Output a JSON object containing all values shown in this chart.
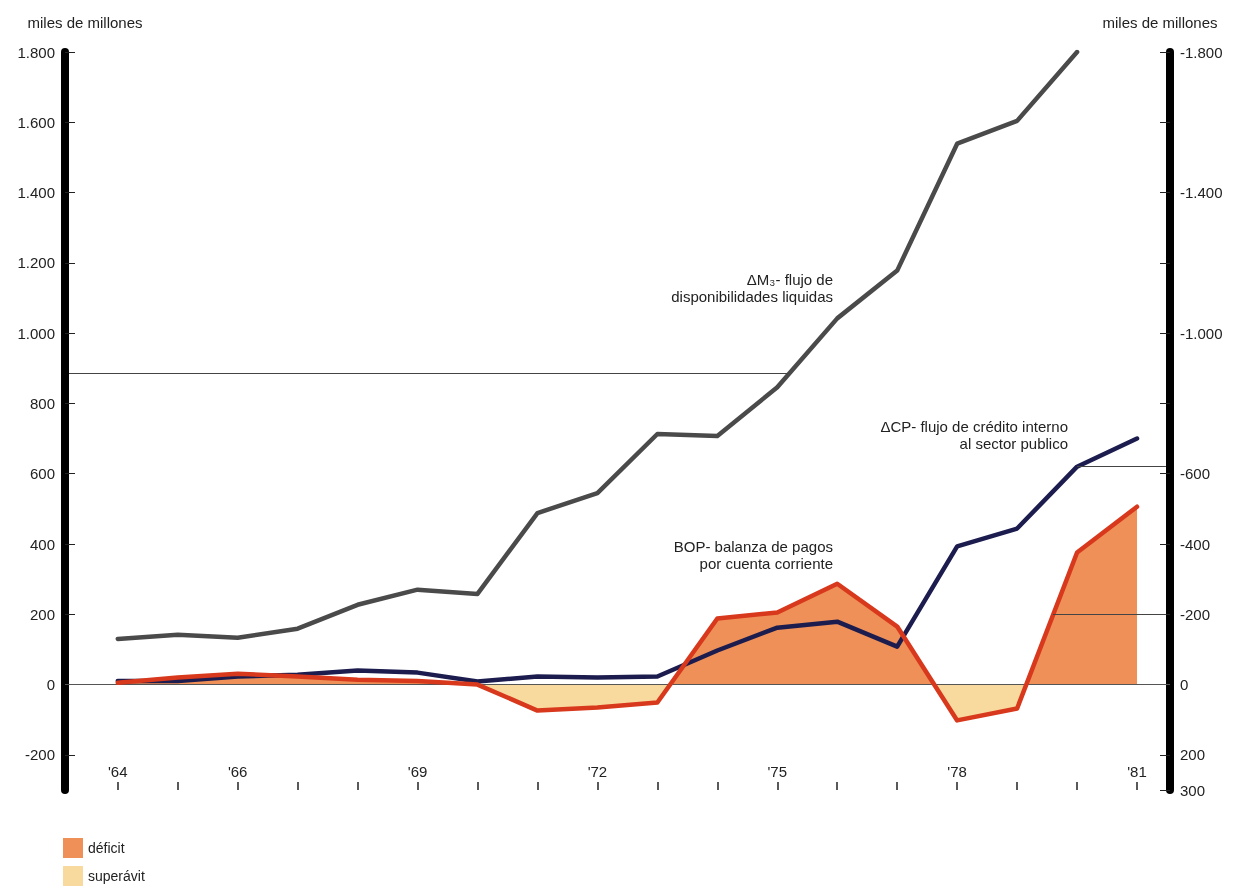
{
  "chart_data": {
    "type": "line",
    "ylabel": "miles de millones",
    "y2label": "miles de millones",
    "x": [
      1964,
      1965,
      1966,
      1967,
      1968,
      1969,
      1970,
      1971,
      1972,
      1973,
      1974,
      1975,
      1976,
      1977,
      1978,
      1979,
      1980,
      1981
    ],
    "xlim": [
      1963.12,
      1981.55
    ],
    "xticks": [
      {
        "value": 1964,
        "label": "'64"
      },
      {
        "value": 1965,
        "label": null
      },
      {
        "value": 1966,
        "label": "'66"
      },
      {
        "value": 1967,
        "label": null
      },
      {
        "value": 1968,
        "label": null
      },
      {
        "value": 1969,
        "label": "'69"
      },
      {
        "value": 1970,
        "label": null
      },
      {
        "value": 1971,
        "label": null
      },
      {
        "value": 1972,
        "label": "'72"
      },
      {
        "value": 1973,
        "label": null
      },
      {
        "value": 1974,
        "label": null
      },
      {
        "value": 1975,
        "label": "'75"
      },
      {
        "value": 1976,
        "label": null
      },
      {
        "value": 1977,
        "label": null
      },
      {
        "value": 1978,
        "label": "'78"
      },
      {
        "value": 1979,
        "label": null
      },
      {
        "value": 1980,
        "label": null
      },
      {
        "value": 1981,
        "label": "'81"
      }
    ],
    "ylim": [
      -300,
      1800
    ],
    "yticks": [
      -200,
      0,
      200,
      400,
      600,
      800,
      {
        "value": 1000,
        "label": "1.000"
      },
      {
        "value": 1200,
        "label": "1.200"
      },
      {
        "value": 1400,
        "label": "1.400"
      },
      {
        "value": 1600,
        "label": "1.600"
      },
      {
        "value": 1800,
        "label": "1.800"
      }
    ],
    "y2lim": [
      300,
      -1800
    ],
    "y2ticks": [
      300,
      200,
      0,
      -200,
      -400,
      -600,
      {
        "value": -800,
        "label": null
      },
      {
        "value": -1000,
        "label": "-1.000"
      },
      {
        "value": -1200,
        "label": null
      },
      {
        "value": -1400,
        "label": "-1.400"
      },
      {
        "value": -1600,
        "label": null
      },
      {
        "value": -1800,
        "label": "-1.800"
      }
    ],
    "grid": false,
    "legend": "bottom left",
    "marker": "none",
    "line_style": "solid",
    "ref_lines": [
      {
        "axis": "y",
        "value": 0,
        "color": "#555555"
      }
    ],
    "series": [
      {
        "name": "ΔM₃- flujo de\ndisponibilidades liquidas",
        "type": "line",
        "color": "#4a4a4a",
        "x": [
          1964,
          1965,
          1966,
          1967,
          1968,
          1969,
          1970,
          1971,
          1972,
          1973,
          1974,
          1975,
          1976,
          1977,
          1978,
          1979,
          1980
        ],
        "values": [
          130,
          142,
          133,
          159,
          227,
          270,
          258,
          488,
          545,
          713,
          707,
          846,
          1042,
          1178,
          1539,
          1604,
          1800
        ]
      },
      {
        "name": "ΔCP- flujo de crédito interno\nal sector publico",
        "type": "line",
        "axis": "y2",
        "color": "#1c1c4e",
        "values": [
          -10,
          -10,
          -23,
          -28,
          -40,
          -34,
          -9,
          -23,
          -20,
          -23,
          -97,
          -162,
          -179,
          -108,
          -393,
          -444,
          -620,
          -700
        ]
      },
      {
        "name": "BOP- balanza de pagos\npor cuenta corriente",
        "type": "line",
        "axis": "y2",
        "color": "#d8381c",
        "values": [
          -5,
          -20,
          -31,
          -23,
          -14,
          -10,
          0,
          74,
          65,
          51,
          -188,
          -205,
          -287,
          -165,
          102,
          68,
          -376,
          -506
        ]
      },
      {
        "name": "déficit",
        "type": "area",
        "axis": "y2",
        "color": "#ee9058",
        "x": [
          1964,
          1965,
          1966,
          1967,
          1968,
          1969,
          1970,
          1973.21,
          1974,
          1975,
          1976,
          1977,
          1977.62,
          1979.15,
          1980,
          1981
        ],
        "values": [
          -5,
          -20,
          -31,
          -23,
          -14,
          -10,
          0,
          0,
          -188,
          -205,
          -287,
          -165,
          0,
          0,
          -376,
          -506
        ]
      },
      {
        "name": "superávit",
        "type": "area",
        "axis": "y2",
        "color": "#f8d99e",
        "x": [
          1970,
          1971,
          1972,
          1973,
          1973.21,
          1977.62,
          1978,
          1979,
          1979.15
        ],
        "values": [
          0,
          74,
          65,
          51,
          0,
          0,
          102,
          68,
          0
        ]
      }
    ]
  }
}
